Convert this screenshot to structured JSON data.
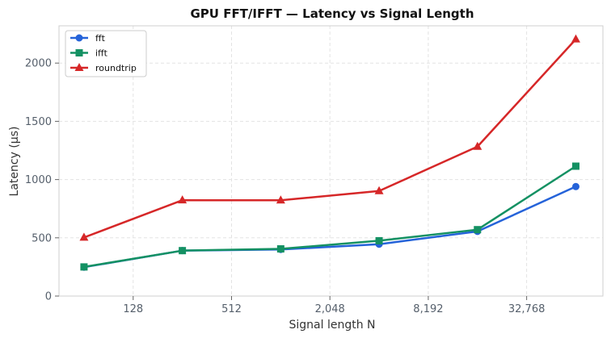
{
  "chart_data": {
    "type": "line",
    "title": "GPU FFT/IFFT — Latency vs Signal Length",
    "xlabel": "Signal length  N",
    "ylabel": "Latency  (μs)",
    "x_scale": "log2",
    "x": [
      64,
      256,
      1024,
      4096,
      16384,
      65536
    ],
    "x_ticks": [
      128,
      512,
      2048,
      8192,
      32768
    ],
    "x_tick_labels": [
      "128",
      "512",
      "2,048",
      "8,192",
      "32,768"
    ],
    "xlim": [
      45,
      96000
    ],
    "ylim": [
      0,
      2320
    ],
    "y_ticks": [
      0,
      500,
      1000,
      1500,
      2000
    ],
    "y_tick_labels": [
      "0",
      "500",
      "1000",
      "1500",
      "2000"
    ],
    "grid": true,
    "legend_position": "top-left",
    "series": [
      {
        "name": "fft",
        "color": "#2563d9",
        "marker": "circle",
        "values": [
          248,
          390,
          400,
          445,
          555,
          940
        ]
      },
      {
        "name": "ifft",
        "color": "#149163",
        "marker": "square",
        "values": [
          250,
          390,
          405,
          475,
          570,
          1115
        ]
      },
      {
        "name": "roundtrip",
        "color": "#d62728",
        "marker": "triangle",
        "values": [
          503,
          823,
          822,
          902,
          1283,
          2205
        ]
      }
    ]
  }
}
